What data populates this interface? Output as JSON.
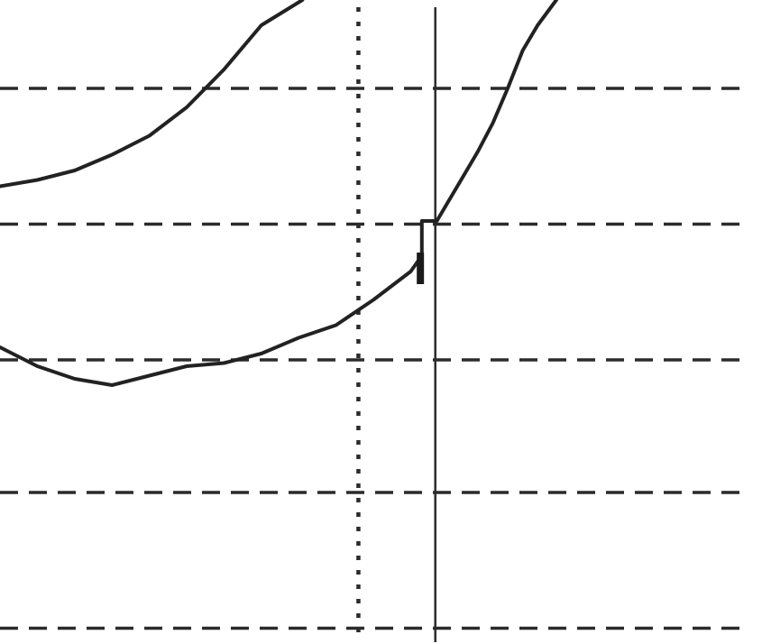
{
  "chart_data": {
    "type": "line",
    "title": "",
    "xlabel": "",
    "ylabel": "",
    "xlim": [
      0,
      100
    ],
    "ylim": [
      0,
      100
    ],
    "grid": true,
    "grid_style": "dashed",
    "horizontal_grid_values": [
      0.5,
      22,
      43,
      64.5,
      86
    ],
    "vertical_markers": [
      {
        "x": 48,
        "style": "dotted"
      },
      {
        "x": 58.3,
        "style": "solid"
      }
    ],
    "series": [
      {
        "values": [
          {
            "x": 0,
            "y": 70.5
          },
          {
            "x": 5,
            "y": 71.5
          },
          {
            "x": 10,
            "y": 73
          },
          {
            "x": 15,
            "y": 75.5
          },
          {
            "x": 20,
            "y": 78.5
          },
          {
            "x": 25,
            "y": 83
          },
          {
            "x": 30,
            "y": 89
          },
          {
            "x": 35,
            "y": 96
          },
          {
            "x": 40.5,
            "y": 100
          }
        ]
      },
      {
        "values": [
          {
            "x": 0,
            "y": 45
          },
          {
            "x": 5,
            "y": 42
          },
          {
            "x": 10,
            "y": 40
          },
          {
            "x": 15,
            "y": 39
          },
          {
            "x": 20,
            "y": 40.5
          },
          {
            "x": 25,
            "y": 42
          },
          {
            "x": 30,
            "y": 42.5
          },
          {
            "x": 35,
            "y": 44
          },
          {
            "x": 40,
            "y": 46.5
          },
          {
            "x": 45,
            "y": 48.5
          },
          {
            "x": 50,
            "y": 52.5
          },
          {
            "x": 55,
            "y": 57
          },
          {
            "x": 56.5,
            "y": 59.5
          },
          {
            "x": 56.5,
            "y": 65
          },
          {
            "x": 58.5,
            "y": 65
          },
          {
            "x": 60,
            "y": 68
          },
          {
            "x": 62,
            "y": 72
          },
          {
            "x": 64,
            "y": 76
          },
          {
            "x": 66,
            "y": 80.5
          },
          {
            "x": 68,
            "y": 86
          },
          {
            "x": 70,
            "y": 92
          },
          {
            "x": 72,
            "y": 96
          },
          {
            "x": 74.5,
            "y": 100
          }
        ]
      }
    ],
    "annotations": [
      {
        "type": "tick",
        "x": 56.3,
        "y_from": 55,
        "y_to": 60
      }
    ]
  }
}
